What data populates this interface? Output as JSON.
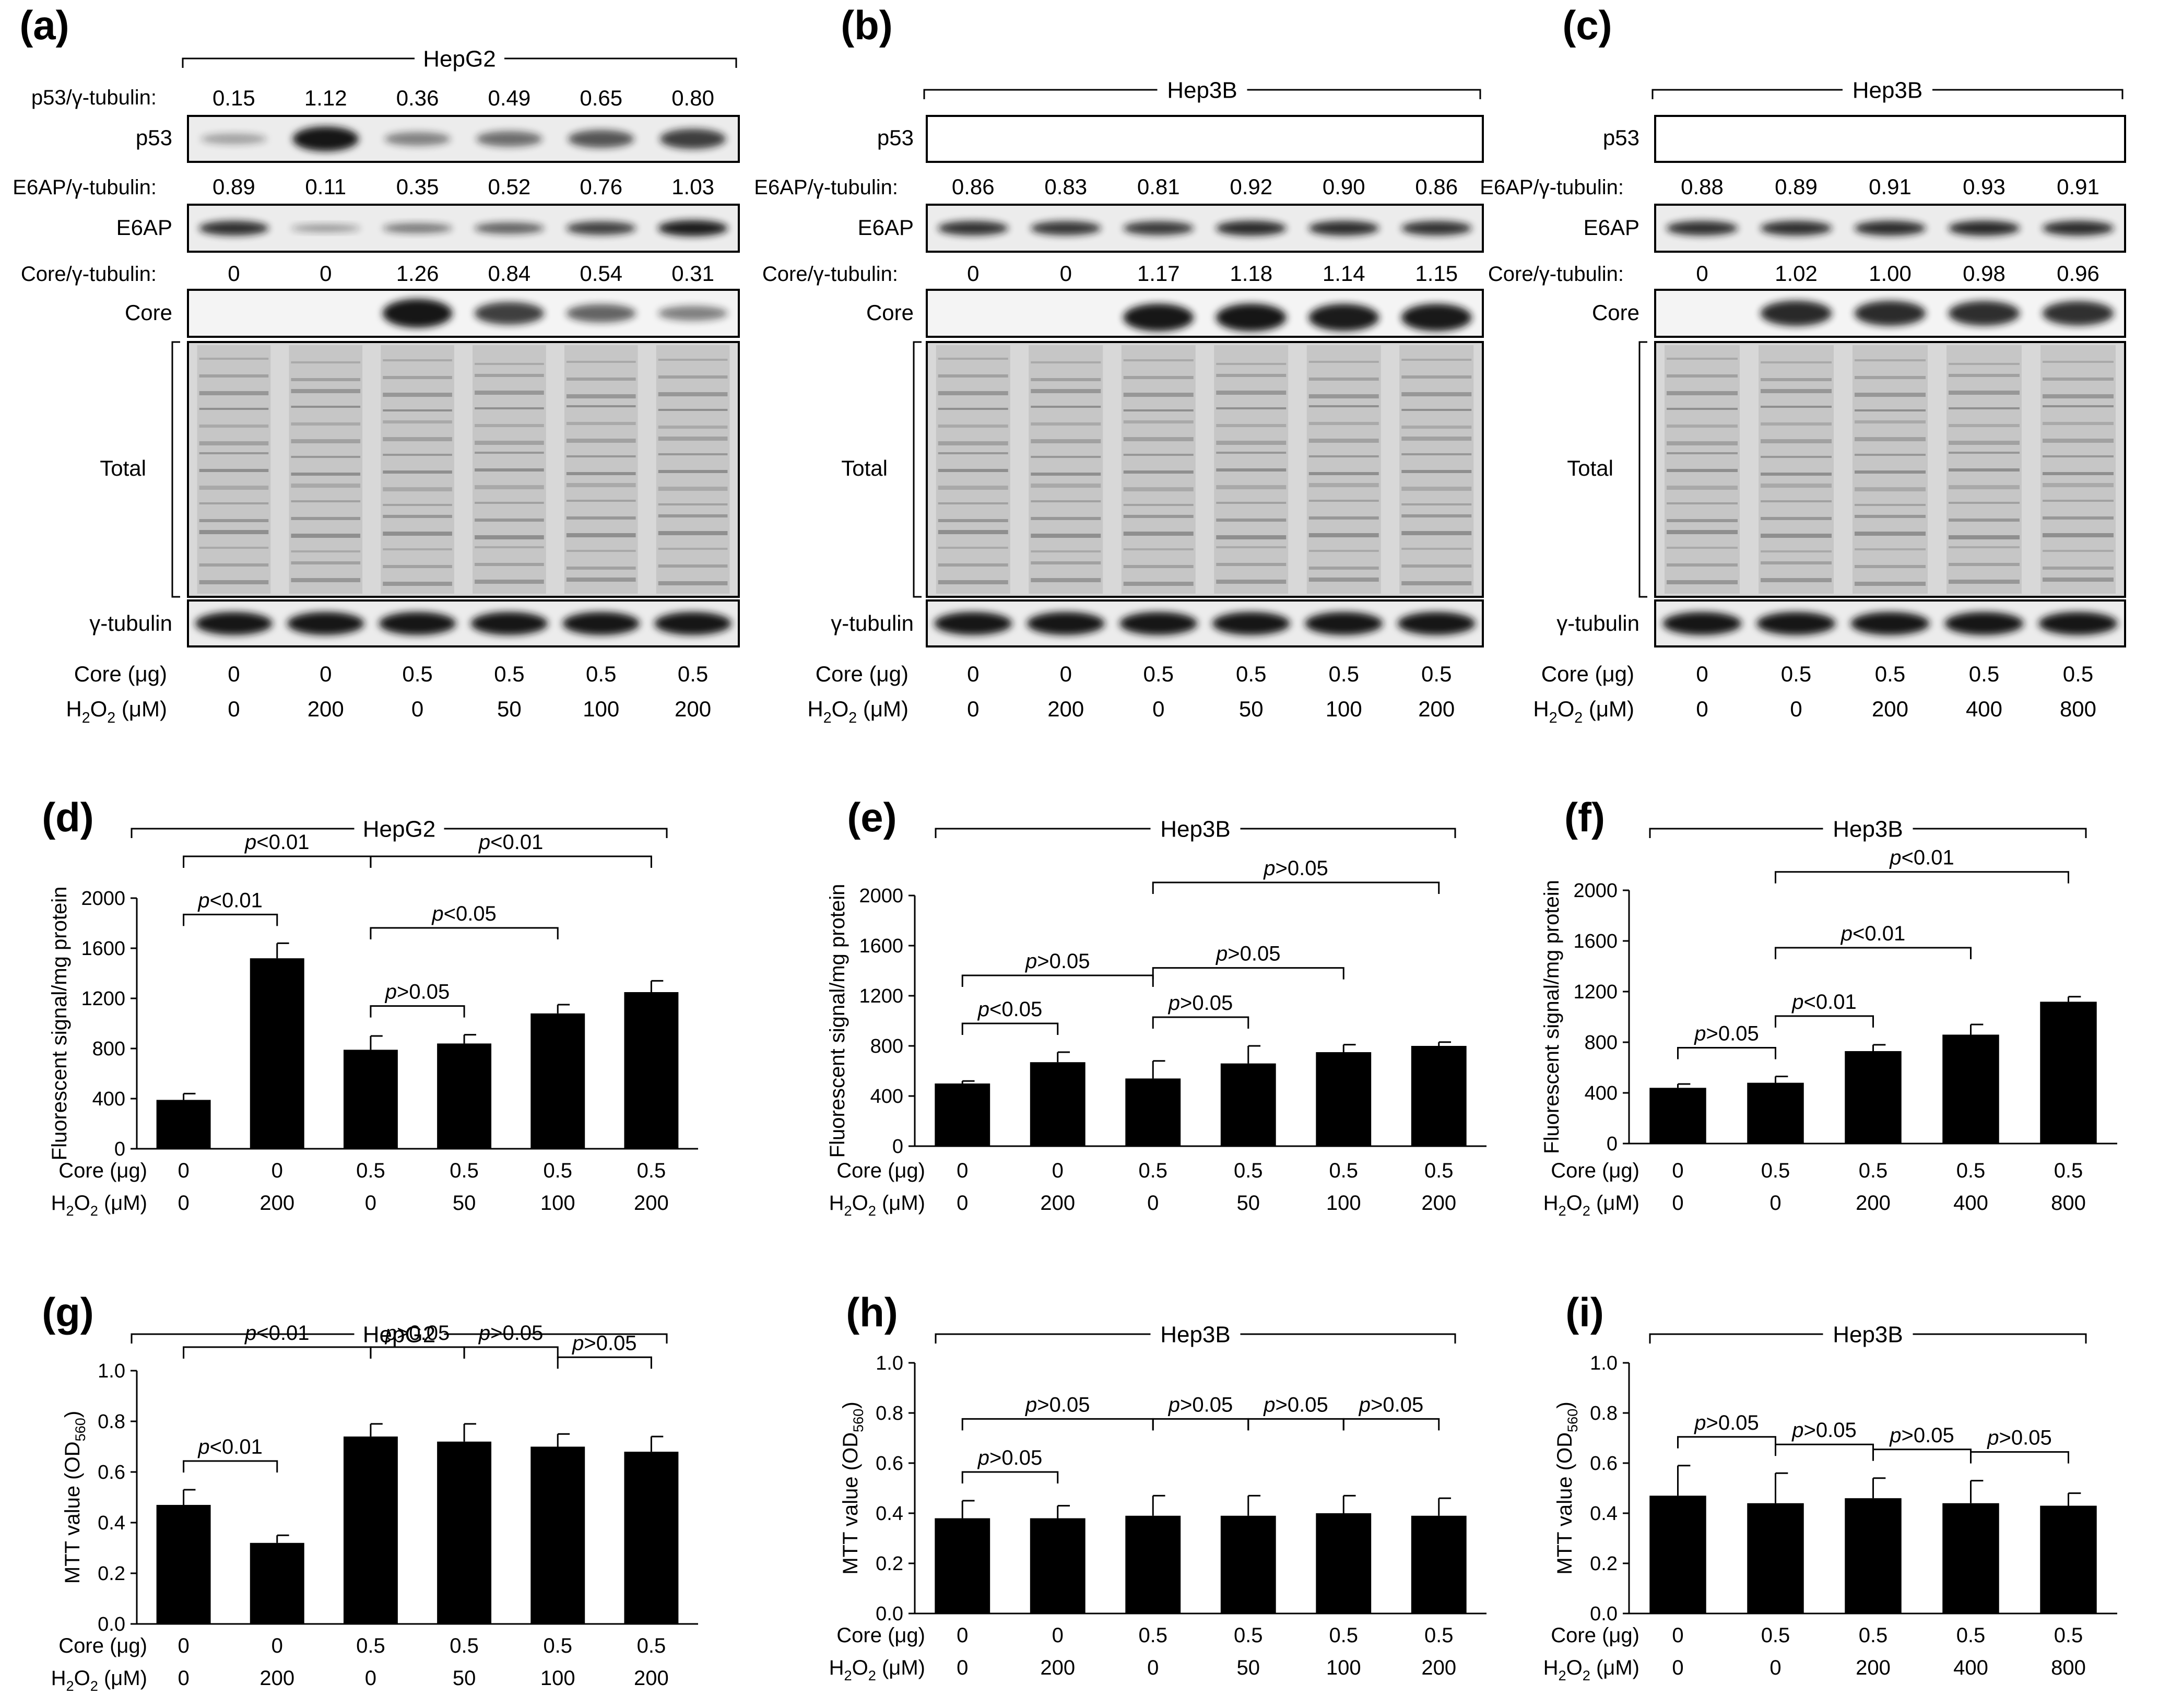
{
  "colors": {
    "bar": "#000000",
    "blot_bg": "#ececec",
    "band": "#141414",
    "text": "#000000"
  },
  "blots": [
    {
      "label": "(a)",
      "cell": "HepG2",
      "core": [
        "0",
        "0",
        "0.5",
        "0.5",
        "0.5",
        "0.5"
      ],
      "h2o2": [
        "0",
        "200",
        "0",
        "50",
        "100",
        "200"
      ],
      "p53_label": "p53",
      "p53_ratio_label": "p53/γ-tubulin:",
      "p53_ratio": [
        "0.15",
        "1.12",
        "0.36",
        "0.49",
        "0.65",
        "0.80"
      ],
      "e6ap_label": "E6AP",
      "e6ap_ratio_label": "E6AP/γ-tubulin:",
      "e6ap_ratio": [
        "0.89",
        "0.11",
        "0.35",
        "0.52",
        "0.76",
        "1.03"
      ],
      "core_band_label": "Core",
      "core_ratio_label": "Core/γ-tubulin:",
      "core_ratio": [
        "0",
        "0",
        "1.26",
        "0.84",
        "0.54",
        "0.31"
      ],
      "total_label": "Total",
      "tubulin_label": "γ-tubulin",
      "core_row_label": "Core (μg)",
      "h2o2_row_label": "H₂O₂ (μM)"
    },
    {
      "label": "(b)",
      "cell": "Hep3B",
      "core": [
        "0",
        "0",
        "0.5",
        "0.5",
        "0.5",
        "0.5"
      ],
      "h2o2": [
        "0",
        "200",
        "0",
        "50",
        "100",
        "200"
      ],
      "p53_label": "p53",
      "e6ap_label": "E6AP",
      "e6ap_ratio_label": "E6AP/γ-tubulin:",
      "e6ap_ratio": [
        "0.86",
        "0.83",
        "0.81",
        "0.92",
        "0.90",
        "0.86"
      ],
      "core_band_label": "Core",
      "core_ratio_label": "Core/γ-tubulin:",
      "core_ratio": [
        "0",
        "0",
        "1.17",
        "1.18",
        "1.14",
        "1.15"
      ],
      "total_label": "Total",
      "tubulin_label": "γ-tubulin",
      "core_row_label": "Core (μg)",
      "h2o2_row_label": "H₂O₂ (μM)"
    },
    {
      "label": "(c)",
      "cell": "Hep3B",
      "core": [
        "0",
        "0.5",
        "0.5",
        "0.5",
        "0.5"
      ],
      "h2o2": [
        "0",
        "0",
        "200",
        "400",
        "800"
      ],
      "p53_label": "p53",
      "e6ap_label": "E6AP",
      "e6ap_ratio_label": "E6AP/γ-tubulin:",
      "e6ap_ratio": [
        "0.88",
        "0.89",
        "0.91",
        "0.93",
        "0.91"
      ],
      "core_band_label": "Core",
      "core_ratio_label": "Core/γ-tubulin:",
      "core_ratio": [
        "0",
        "1.02",
        "1.00",
        "0.98",
        "0.96"
      ],
      "total_label": "Total",
      "tubulin_label": "γ-tubulin",
      "core_row_label": "Core (μg)",
      "h2o2_row_label": "H₂O₂ (μM)"
    }
  ],
  "chart_data": [
    {
      "type": "bar",
      "label": "(d)",
      "group": "HepG2",
      "ylabel": "Fluorescent signal/mg protein",
      "ylim": [
        0,
        2000
      ],
      "yticks": [
        "0",
        "400",
        "800",
        "1200",
        "1600",
        "2000"
      ],
      "row_labels": [
        "Core (μg)",
        "H₂O₂ (μM)"
      ],
      "core": [
        "0",
        "0",
        "0.5",
        "0.5",
        "0.5",
        "0.5"
      ],
      "h2o2": [
        "0",
        "200",
        "0",
        "50",
        "100",
        "200"
      ],
      "values": [
        390,
        1520,
        790,
        840,
        1080,
        1250
      ],
      "errors": [
        50,
        120,
        110,
        70,
        70,
        90
      ],
      "comparisons": [
        {
          "from": 0,
          "to": 1,
          "text": "p<0.01",
          "level": 0
        },
        {
          "from": 2,
          "to": 3,
          "text": "p>0.05",
          "level": 0
        },
        {
          "from": 2,
          "to": 4,
          "text": "p<0.05",
          "level": 1
        },
        {
          "from": 0,
          "to": 2,
          "text": "p<0.01",
          "level": 2
        },
        {
          "from": 2,
          "to": 5,
          "text": "p<0.01",
          "level": 2
        }
      ]
    },
    {
      "type": "bar",
      "label": "(e)",
      "group": "Hep3B",
      "ylabel": "Fluorescent signal/mg protein",
      "ylim": [
        0,
        2000
      ],
      "yticks": [
        "0",
        "400",
        "800",
        "1200",
        "1600",
        "2000"
      ],
      "row_labels": [
        "Core (μg)",
        "H₂O₂ (μM)"
      ],
      "core": [
        "0",
        "0",
        "0.5",
        "0.5",
        "0.5",
        "0.5"
      ],
      "h2o2": [
        "0",
        "200",
        "0",
        "50",
        "100",
        "200"
      ],
      "values": [
        500,
        670,
        540,
        660,
        750,
        800
      ],
      "errors": [
        20,
        80,
        140,
        140,
        60,
        30
      ],
      "comparisons": [
        {
          "from": 0,
          "to": 1,
          "text": "p<0.05",
          "level": 0
        },
        {
          "from": 2,
          "to": 3,
          "text": "p>0.05",
          "level": 0
        },
        {
          "from": 0,
          "to": 2,
          "text": "p>0.05",
          "level": 1
        },
        {
          "from": 2,
          "to": 4,
          "text": "p>0.05",
          "level": 1
        },
        {
          "from": 2,
          "to": 5,
          "text": "p>0.05",
          "level": 2
        }
      ]
    },
    {
      "type": "bar",
      "label": "(f)",
      "group": "Hep3B",
      "ylabel": "Fluorescent signal/mg protein",
      "ylim": [
        0,
        2000
      ],
      "yticks": [
        "0",
        "400",
        "800",
        "1200",
        "1600",
        "2000"
      ],
      "row_labels": [
        "Core (μg)",
        "H₂O₂ (μM)"
      ],
      "core": [
        "0",
        "0.5",
        "0.5",
        "0.5",
        "0.5"
      ],
      "h2o2": [
        "0",
        "0",
        "200",
        "400",
        "800"
      ],
      "values": [
        440,
        480,
        730,
        860,
        1120
      ],
      "errors": [
        30,
        50,
        50,
        80,
        40
      ],
      "comparisons": [
        {
          "from": 0,
          "to": 1,
          "text": "p>0.05",
          "level": 0
        },
        {
          "from": 1,
          "to": 2,
          "text": "p<0.01",
          "level": 0
        },
        {
          "from": 1,
          "to": 3,
          "text": "p<0.01",
          "level": 1
        },
        {
          "from": 1,
          "to": 4,
          "text": "p<0.01",
          "level": 2
        }
      ]
    },
    {
      "type": "bar",
      "label": "(g)",
      "group": "HepG2",
      "ylabel": "MTT value (OD560)",
      "ylim": [
        0,
        1.0
      ],
      "yticks": [
        "0.0",
        "0.2",
        "0.4",
        "0.6",
        "0.8",
        "1.0"
      ],
      "row_labels": [
        "Core (μg)",
        "H₂O₂ (μM)"
      ],
      "core": [
        "0",
        "0",
        "0.5",
        "0.5",
        "0.5",
        "0.5"
      ],
      "h2o2": [
        "0",
        "200",
        "0",
        "50",
        "100",
        "200"
      ],
      "values": [
        0.47,
        0.32,
        0.74,
        0.72,
        0.7,
        0.68
      ],
      "errors": [
        0.06,
        0.03,
        0.05,
        0.07,
        0.05,
        0.06
      ],
      "comparisons": [
        {
          "from": 0,
          "to": 1,
          "text": "p<0.01",
          "level": 0
        },
        {
          "from": 0,
          "to": 2,
          "text": "p<0.01",
          "level": 1
        },
        {
          "from": 2,
          "to": 3,
          "text": "p>0.05",
          "level": 1
        },
        {
          "from": 3,
          "to": 4,
          "text": "p>0.05",
          "level": 1
        },
        {
          "from": 4,
          "to": 5,
          "text": "p>0.05",
          "level": 1
        }
      ]
    },
    {
      "type": "bar",
      "label": "(h)",
      "group": "Hep3B",
      "ylabel": "MTT value (OD560)",
      "ylim": [
        0,
        1.0
      ],
      "yticks": [
        "0.0",
        "0.2",
        "0.4",
        "0.6",
        "0.8",
        "1.0"
      ],
      "row_labels": [
        "Core (μg)",
        "H₂O₂ (μM)"
      ],
      "core": [
        "0",
        "0",
        "0.5",
        "0.5",
        "0.5",
        "0.5"
      ],
      "h2o2": [
        "0",
        "200",
        "0",
        "50",
        "100",
        "200"
      ],
      "values": [
        0.38,
        0.38,
        0.39,
        0.39,
        0.4,
        0.39
      ],
      "errors": [
        0.07,
        0.05,
        0.08,
        0.08,
        0.07,
        0.07
      ],
      "comparisons": [
        {
          "from": 0,
          "to": 1,
          "text": "p>0.05",
          "level": 0
        },
        {
          "from": 0,
          "to": 2,
          "text": "p>0.05",
          "level": 1
        },
        {
          "from": 2,
          "to": 3,
          "text": "p>0.05",
          "level": 1
        },
        {
          "from": 3,
          "to": 4,
          "text": "p>0.05",
          "level": 1
        },
        {
          "from": 4,
          "to": 5,
          "text": "p>0.05",
          "level": 1
        }
      ]
    },
    {
      "type": "bar",
      "label": "(i)",
      "group": "Hep3B",
      "ylabel": "MTT value (OD560)",
      "ylim": [
        0,
        1.0
      ],
      "yticks": [
        "0.0",
        "0.2",
        "0.4",
        "0.6",
        "0.8",
        "1.0"
      ],
      "row_labels": [
        "Core (μg)",
        "H₂O₂ (μM)"
      ],
      "core": [
        "0",
        "0.5",
        "0.5",
        "0.5",
        "0.5"
      ],
      "h2o2": [
        "0",
        "0",
        "200",
        "400",
        "800"
      ],
      "values": [
        0.47,
        0.44,
        0.46,
        0.44,
        0.43
      ],
      "errors": [
        0.12,
        0.12,
        0.08,
        0.09,
        0.05
      ],
      "comparisons": [
        {
          "from": 0,
          "to": 1,
          "text": "p>0.05",
          "level": 0
        },
        {
          "from": 1,
          "to": 2,
          "text": "p>0.05",
          "level": 0
        },
        {
          "from": 2,
          "to": 3,
          "text": "p>0.05",
          "level": 0
        },
        {
          "from": 3,
          "to": 4,
          "text": "p>0.05",
          "level": 0
        }
      ]
    }
  ]
}
